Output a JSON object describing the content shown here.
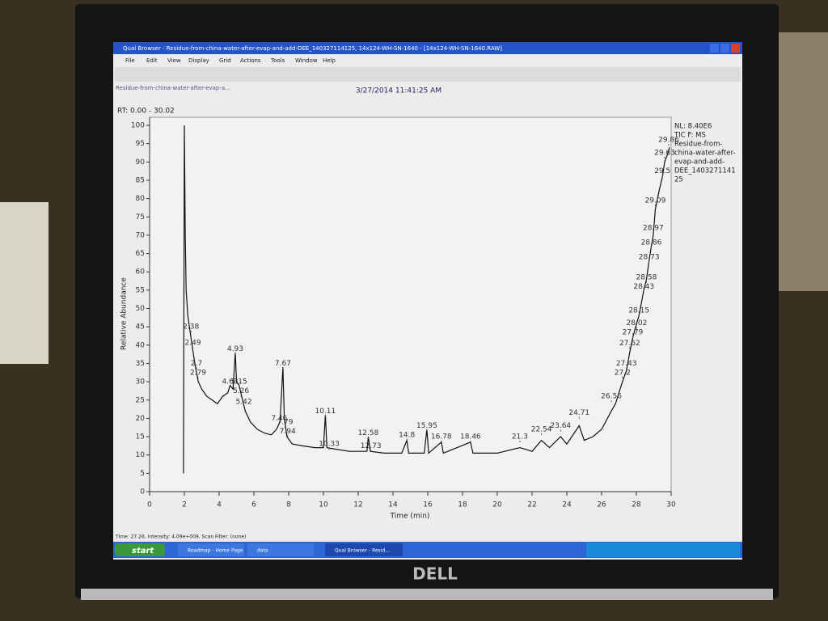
{
  "window": {
    "title": "Qual Browser - Residue-from-china-water-after-evap-and-add-DEE_140327114125, 14x124-WH-SN-1640 - [14x124-WH-SN-1640.RAW]",
    "menu": [
      "File",
      "Edit",
      "View",
      "Display",
      "Grid",
      "Actions",
      "Tools",
      "Window",
      "Help"
    ],
    "file_label": "Residue-from-china-water-after-evap-a...",
    "timestamp": "3/27/2014 11:41:25 AM",
    "range": "RT: 0.00 - 30.02",
    "info": [
      "NL: 8.40E6",
      "TIC F: MS",
      "Residue-from-",
      "china-water-after-",
      "evap-and-add-",
      "DEE_1403271141",
      "25"
    ],
    "status": "Time: 27.26, Intensity: 4.09e+009, Scan Filter: (none)",
    "taskbar": {
      "start": "start",
      "items": [
        "Roadmap - Home Page",
        "data",
        "Qual Browser - Resid..."
      ]
    },
    "brand": "DELL"
  },
  "chart_data": {
    "type": "line",
    "x_label": "Time (min)",
    "y_label": "Relative Abundance",
    "xlim": [
      0,
      30
    ],
    "ylim": [
      0,
      100
    ],
    "xticks": [
      0,
      2,
      4,
      6,
      8,
      10,
      12,
      14,
      16,
      18,
      20,
      22,
      24,
      26,
      28,
      30
    ],
    "yticks": [
      0,
      5,
      10,
      15,
      20,
      25,
      30,
      35,
      40,
      45,
      50,
      55,
      60,
      65,
      70,
      75,
      80,
      85,
      90,
      95,
      100
    ],
    "x": [
      1.95,
      2.0,
      2.05,
      2.1,
      2.2,
      2.38,
      2.6,
      2.8,
      3.0,
      3.3,
      3.6,
      3.9,
      4.2,
      4.5,
      4.63,
      4.8,
      4.93,
      5.0,
      5.15,
      5.3,
      5.5,
      5.8,
      6.2,
      6.6,
      7.0,
      7.3,
      7.5,
      7.67,
      7.75,
      7.9,
      8.2,
      8.8,
      9.5,
      10.0,
      10.11,
      10.2,
      10.8,
      11.5,
      12.5,
      12.58,
      12.7,
      13.5,
      14.5,
      14.8,
      14.9,
      15.8,
      15.95,
      16.05,
      16.78,
      16.9,
      18.46,
      18.6,
      20,
      21.3,
      22,
      22.54,
      23,
      23.64,
      24,
      24.71,
      25,
      25.5,
      26,
      26.56,
      26.8,
      27.2,
      27.43,
      27.62,
      27.79,
      28.02,
      28.15,
      28.43,
      28.58,
      28.73,
      28.86,
      28.97,
      29.09,
      29.3,
      29.5,
      29.63,
      29.86,
      29.9
    ],
    "series": [
      {
        "color": "#111111",
        "values": [
          5,
          100,
          70,
          55,
          48,
          42,
          35,
          30,
          28,
          26,
          25,
          24,
          26,
          27,
          29,
          28,
          38,
          30,
          29,
          26,
          22,
          19,
          17,
          16,
          15.5,
          17,
          19,
          34,
          20,
          15,
          13,
          12.5,
          12,
          12,
          21,
          12,
          11.5,
          11,
          11,
          15,
          11,
          10.5,
          10.5,
          14,
          10.5,
          10.5,
          17,
          10.5,
          13.5,
          10.5,
          13.5,
          10.5,
          10.5,
          12,
          11,
          14,
          12,
          15,
          13,
          18,
          14,
          15,
          17,
          22,
          24,
          30,
          33,
          38,
          42,
          46,
          48,
          55,
          58,
          63,
          67,
          70,
          77,
          82,
          86,
          90,
          93,
          94
        ]
      }
    ],
    "peaks": [
      {
        "time": 2.38,
        "abundance": 45
      },
      {
        "time": 2.49,
        "abundance": 40.6
      },
      {
        "time": 2.7,
        "abundance": 35
      },
      {
        "time": 2.79,
        "abundance": 32.5
      },
      {
        "time": 4.63,
        "abundance": 30
      },
      {
        "time": 4.93,
        "abundance": 39
      },
      {
        "time": 5.15,
        "abundance": 30
      },
      {
        "time": 5.26,
        "abundance": 27.5
      },
      {
        "time": 5.42,
        "abundance": 24.5
      },
      {
        "time": 7.46,
        "abundance": 20
      },
      {
        "time": 7.67,
        "abundance": 35
      },
      {
        "time": 7.79,
        "abundance": 19
      },
      {
        "time": 7.94,
        "abundance": 16.5
      },
      {
        "time": 10.11,
        "abundance": 22
      },
      {
        "time": 10.33,
        "abundance": 13
      },
      {
        "time": 12.58,
        "abundance": 16
      },
      {
        "time": 12.73,
        "abundance": 12.5
      },
      {
        "time": 14.8,
        "abundance": 15.5
      },
      {
        "time": 15.95,
        "abundance": 18
      },
      {
        "time": 16.78,
        "abundance": 15
      },
      {
        "time": 18.46,
        "abundance": 15
      },
      {
        "time": 21.3,
        "abundance": 15
      },
      {
        "time": 22.54,
        "abundance": 17
      },
      {
        "time": 23.64,
        "abundance": 18
      },
      {
        "time": 24.71,
        "abundance": 21.5
      },
      {
        "time": 26.56,
        "abundance": 26
      },
      {
        "time": 27.2,
        "abundance": 32.5
      },
      {
        "time": 27.43,
        "abundance": 35
      },
      {
        "time": 27.62,
        "abundance": 40.5
      },
      {
        "time": 27.79,
        "abundance": 43.5
      },
      {
        "time": 28.02,
        "abundance": 46
      },
      {
        "time": 28.15,
        "abundance": 49.5
      },
      {
        "time": 28.43,
        "abundance": 56
      },
      {
        "time": 28.58,
        "abundance": 58.5
      },
      {
        "time": 28.73,
        "abundance": 64
      },
      {
        "time": 28.86,
        "abundance": 68
      },
      {
        "time": 28.97,
        "abundance": 72
      },
      {
        "time": 29.09,
        "abundance": 79.5
      },
      {
        "time": 29.5,
        "abundance": 87.5
      },
      {
        "time": 29.63,
        "abundance": 92.5
      },
      {
        "time": 29.86,
        "abundance": 96
      }
    ]
  }
}
